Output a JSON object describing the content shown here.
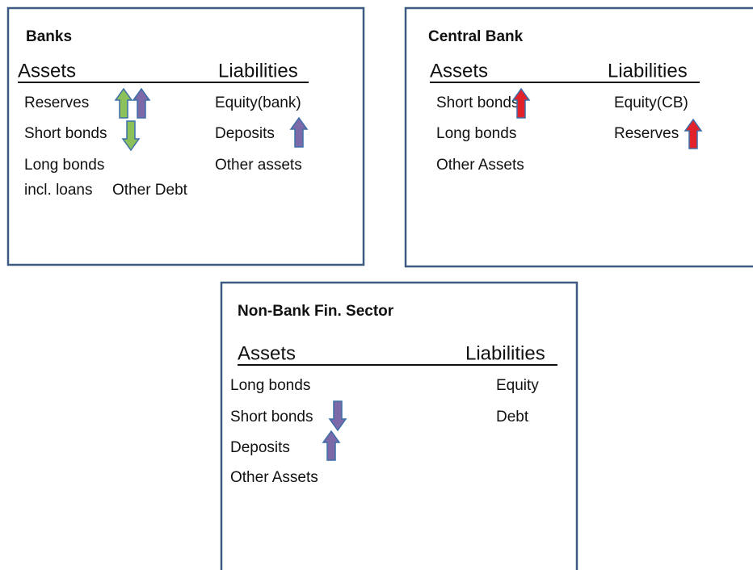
{
  "banks": {
    "title": "Banks",
    "assets_header": "Assets",
    "liabilities_header": "Liabilities",
    "assets": [
      "Reserves",
      "Short bonds",
      "Long bonds",
      "incl. loans"
    ],
    "liabilities": [
      "Equity(bank)",
      "Deposits",
      "Other assets",
      "Other Debt"
    ]
  },
  "central_bank": {
    "title": "Central Bank",
    "assets_header": "Assets",
    "liabilities_header": "Liabilities",
    "assets": [
      "Short bonds",
      "Long bonds",
      "Other Assets"
    ],
    "liabilities": [
      "Equity(CB)",
      "Reserves"
    ]
  },
  "non_bank": {
    "title": "Non-Bank Fin. Sector",
    "assets_header": "Assets",
    "liabilities_header": "Liabilities",
    "assets": [
      "Long bonds",
      "Short bonds",
      "Deposits",
      "Other Assets"
    ],
    "liabilities": [
      "Equity",
      "Debt"
    ]
  }
}
